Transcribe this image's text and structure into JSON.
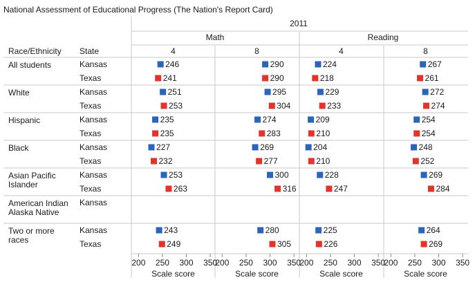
{
  "chart_data": {
    "type": "scatter",
    "title": "National Assessment of Educational Progress (The Nation's Report Card)",
    "year": "2011",
    "column_header_race": "Race/Ethnicity",
    "column_header_state": "State",
    "axis_label": "Scale score",
    "x_ticks": [
      200,
      250,
      300,
      350
    ],
    "xlim": [
      185,
      360
    ],
    "colors": {
      "Kansas": "#2b64b8",
      "Texas": "#e3342c"
    },
    "panels": [
      {
        "subject": "Math",
        "grade": "4"
      },
      {
        "subject": "Math",
        "grade": "8"
      },
      {
        "subject": "Reading",
        "grade": "4"
      },
      {
        "subject": "Reading",
        "grade": "8"
      }
    ],
    "subjects": [
      "Math",
      "Reading"
    ],
    "groups": [
      {
        "name": "All students",
        "rows": [
          {
            "state": "Kansas",
            "values": [
              246,
              290,
              224,
              267
            ]
          },
          {
            "state": "Texas",
            "values": [
              241,
              290,
              218,
              261
            ]
          }
        ]
      },
      {
        "name": "White",
        "rows": [
          {
            "state": "Kansas",
            "values": [
              251,
              295,
              229,
              272
            ]
          },
          {
            "state": "Texas",
            "values": [
              253,
              304,
              233,
              274
            ]
          }
        ]
      },
      {
        "name": "Hispanic",
        "rows": [
          {
            "state": "Kansas",
            "values": [
              235,
              274,
              209,
              254
            ]
          },
          {
            "state": "Texas",
            "values": [
              235,
              283,
              210,
              254
            ]
          }
        ]
      },
      {
        "name": "Black",
        "rows": [
          {
            "state": "Kansas",
            "values": [
              227,
              269,
              204,
              248
            ]
          },
          {
            "state": "Texas",
            "values": [
              232,
              277,
              210,
              252
            ]
          }
        ]
      },
      {
        "name": "Asian Pacific Islander",
        "rows": [
          {
            "state": "Kansas",
            "values": [
              253,
              300,
              228,
              269
            ]
          },
          {
            "state": "Texas",
            "values": [
              263,
              316,
              247,
              284
            ]
          }
        ]
      },
      {
        "name": "American Indian Alaska Native",
        "rows": [
          {
            "state": "Kansas",
            "values": [
              null,
              null,
              null,
              null
            ]
          }
        ]
      },
      {
        "name": "Two or more races",
        "rows": [
          {
            "state": "Kansas",
            "values": [
              243,
              280,
              225,
              264
            ]
          },
          {
            "state": "Texas",
            "values": [
              249,
              305,
              226,
              269
            ]
          }
        ]
      }
    ]
  }
}
